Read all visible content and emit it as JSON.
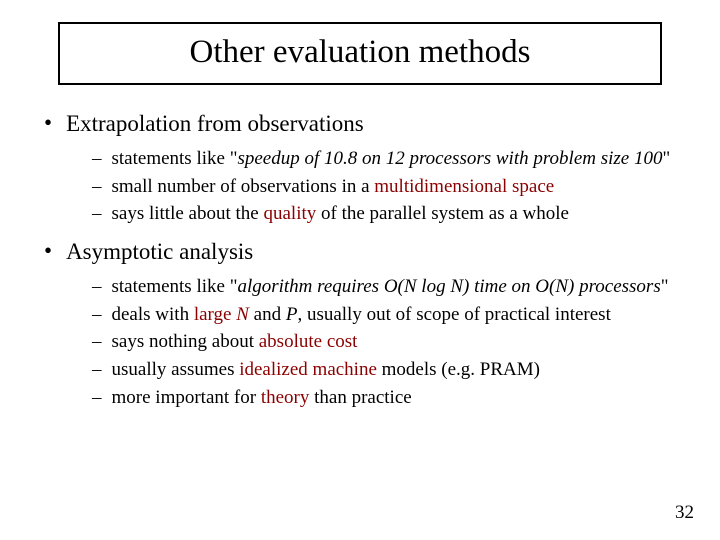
{
  "title": "Other evaluation methods",
  "bullets": {
    "b1": "Extrapolation from observations",
    "b1s1_pre": "statements like \"",
    "b1s1_em": "speedup of 10.8 on 12 processors with problem size 100",
    "b1s1_post": "\"",
    "b1s2_a": "small number of observations in a ",
    "b1s2_hl": "multidimensional space",
    "b1s3_a": "says little about the ",
    "b1s3_hl": "quality",
    "b1s3_b": " of the parallel system as a whole",
    "b2": "Asymptotic analysis",
    "b2s1_pre": "statements like \"",
    "b2s1_em": "algorithm requires O(N log N) time on O(N) processors",
    "b2s1_post": "\"",
    "b2s2_a": "deals with ",
    "b2s2_hl1": "large ",
    "b2s2_em1": "N",
    "b2s2_mid": " and ",
    "b2s2_em2": "P",
    "b2s2_b": ", usually out of scope of practical interest",
    "b2s3_a": "says nothing about ",
    "b2s3_hl": "absolute cost",
    "b2s4_a": "usually assumes ",
    "b2s4_hl": "idealized machine",
    "b2s4_b": " models (e.g. PRAM)",
    "b2s5_a": "more important for ",
    "b2s5_hl": "theory",
    "b2s5_b": " than practice"
  },
  "page_number": "32",
  "colors": {
    "highlight": "#8b0000",
    "text": "#000000",
    "background": "#ffffff",
    "border": "#000000"
  },
  "fonts": {
    "title_size": 33,
    "l1_size": 23,
    "l2_size": 19,
    "page_num_size": 19
  }
}
